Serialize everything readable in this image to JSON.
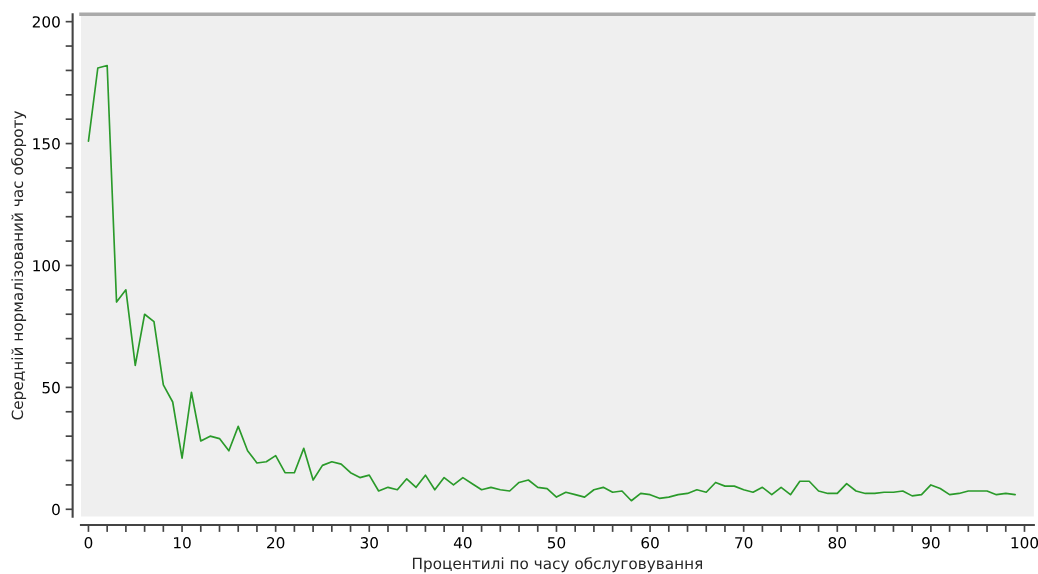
{
  "chart_data": {
    "type": "line",
    "xlabel": "Процентилі по часу обслуговування",
    "ylabel": "Середній нормалізований час обороту",
    "x": [
      0,
      1,
      2,
      3,
      4,
      5,
      6,
      7,
      8,
      9,
      10,
      11,
      12,
      13,
      14,
      15,
      16,
      17,
      18,
      19,
      20,
      21,
      22,
      23,
      24,
      25,
      26,
      27,
      28,
      29,
      30,
      31,
      32,
      33,
      34,
      35,
      36,
      37,
      38,
      39,
      40,
      41,
      42,
      43,
      44,
      45,
      46,
      47,
      48,
      49,
      50,
      51,
      52,
      53,
      54,
      55,
      56,
      57,
      58,
      59,
      60,
      61,
      62,
      63,
      64,
      65,
      66,
      67,
      68,
      69,
      70,
      71,
      72,
      73,
      74,
      75,
      76,
      77,
      78,
      79,
      80,
      81,
      82,
      83,
      84,
      85,
      86,
      87,
      88,
      89,
      90,
      91,
      92,
      93,
      94,
      95,
      96,
      97,
      98,
      99
    ],
    "series": [
      {
        "color": "#2a9a2a",
        "values": [
          151,
          181,
          182,
          85,
          90,
          59,
          80,
          77,
          51,
          44,
          21,
          48,
          28,
          30,
          29,
          24,
          34,
          24,
          19,
          19.5,
          22,
          15,
          15,
          25,
          12,
          18,
          19.5,
          18.5,
          15,
          13,
          14,
          7.5,
          9,
          8,
          12.5,
          9,
          14,
          8,
          13,
          10,
          13,
          10.5,
          8,
          9,
          8,
          7.5,
          11,
          12,
          9,
          8.5,
          5,
          7,
          6,
          5,
          8,
          9,
          7,
          7.5,
          3.5,
          6.5,
          6,
          4.5,
          5,
          6,
          6.5,
          8,
          7,
          11,
          9.5,
          9.5,
          8,
          7,
          9,
          6,
          9,
          6,
          11.5,
          11.5,
          7.5,
          6.5,
          6.5,
          10.5,
          7.5,
          6.5,
          6.5,
          7,
          7,
          7.5,
          5.5,
          6,
          10,
          8.5,
          6,
          6.5,
          7.5,
          7.5,
          7.5,
          6,
          6.5,
          6
        ]
      }
    ],
    "xlim": [
      -0.8,
      101
    ],
    "ylim": [
      -3,
      203
    ],
    "xticks": [
      0,
      {
        "value": 2,
        "label": null
      },
      {
        "value": 4,
        "label": null
      },
      {
        "value": 6,
        "label": null
      },
      {
        "value": 8,
        "label": null
      },
      10,
      {
        "value": 12,
        "label": null
      },
      {
        "value": 14,
        "label": null
      },
      {
        "value": 16,
        "label": null
      },
      {
        "value": 18,
        "label": null
      },
      20,
      {
        "value": 22,
        "label": null
      },
      {
        "value": 24,
        "label": null
      },
      {
        "value": 26,
        "label": null
      },
      {
        "value": 28,
        "label": null
      },
      30,
      {
        "value": 32,
        "label": null
      },
      {
        "value": 34,
        "label": null
      },
      {
        "value": 36,
        "label": null
      },
      {
        "value": 38,
        "label": null
      },
      40,
      {
        "value": 42,
        "label": null
      },
      {
        "value": 44,
        "label": null
      },
      {
        "value": 46,
        "label": null
      },
      {
        "value": 48,
        "label": null
      },
      50,
      {
        "value": 52,
        "label": null
      },
      {
        "value": 54,
        "label": null
      },
      {
        "value": 56,
        "label": null
      },
      {
        "value": 58,
        "label": null
      },
      60,
      {
        "value": 62,
        "label": null
      },
      {
        "value": 64,
        "label": null
      },
      {
        "value": 66,
        "label": null
      },
      {
        "value": 68,
        "label": null
      },
      70,
      {
        "value": 72,
        "label": null
      },
      {
        "value": 74,
        "label": null
      },
      {
        "value": 76,
        "label": null
      },
      {
        "value": 78,
        "label": null
      },
      80,
      {
        "value": 82,
        "label": null
      },
      {
        "value": 84,
        "label": null
      },
      {
        "value": 86,
        "label": null
      },
      {
        "value": 88,
        "label": null
      },
      90,
      {
        "value": 92,
        "label": null
      },
      {
        "value": 94,
        "label": null
      },
      {
        "value": 96,
        "label": null
      },
      {
        "value": 98,
        "label": null
      },
      100
    ],
    "yticks": [
      0,
      {
        "value": 10,
        "label": null
      },
      {
        "value": 20,
        "label": null
      },
      {
        "value": 30,
        "label": null
      },
      {
        "value": 40,
        "label": null
      },
      50,
      {
        "value": 60,
        "label": null
      },
      {
        "value": 70,
        "label": null
      },
      {
        "value": 80,
        "label": null
      },
      {
        "value": 90,
        "label": null
      },
      100,
      {
        "value": 110,
        "label": null
      },
      {
        "value": 120,
        "label": null
      },
      {
        "value": 130,
        "label": null
      },
      {
        "value": 140,
        "label": null
      },
      150,
      {
        "value": 160,
        "label": null
      },
      {
        "value": 170,
        "label": null
      },
      {
        "value": 180,
        "label": null
      },
      {
        "value": 190,
        "label": null
      },
      200
    ],
    "grid": false,
    "legend": false,
    "marker": "none",
    "line_style": "solid"
  }
}
